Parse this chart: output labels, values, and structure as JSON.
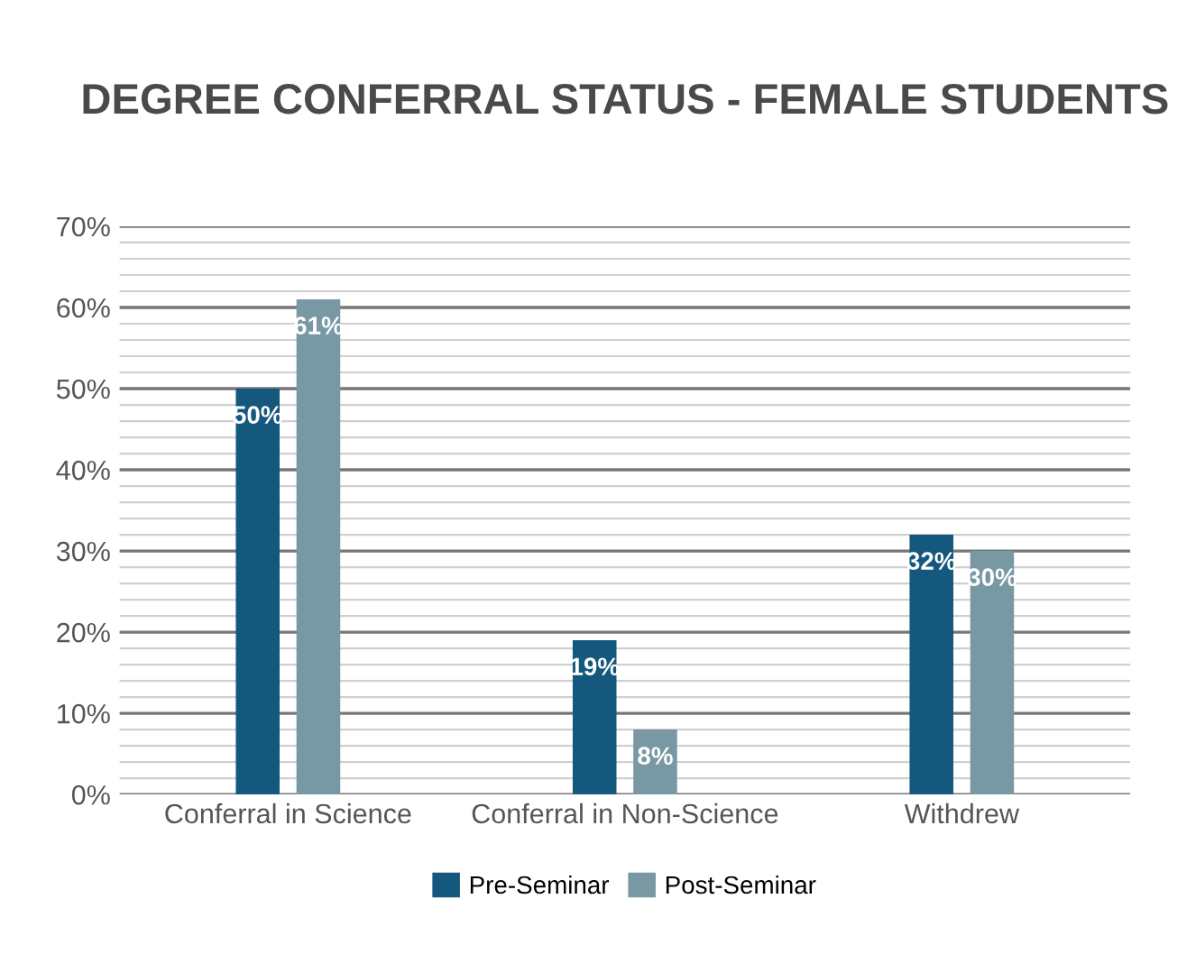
{
  "chart_data": {
    "type": "bar",
    "title": "DEGREE CONFERRAL STATUS - FEMALE STUDENTS",
    "categories": [
      "Conferral in Science",
      "Conferral in Non-Science",
      "Withdrew"
    ],
    "series": [
      {
        "name": "Pre-Seminar",
        "color": "#15587d",
        "values": [
          50,
          19,
          32
        ],
        "value_labels": [
          "50%",
          "19%",
          "32%"
        ]
      },
      {
        "name": "Post-Seminar",
        "color": "#7898a4",
        "values": [
          61,
          8,
          30
        ],
        "value_labels": [
          "61%",
          "8%",
          "30%"
        ]
      }
    ],
    "ylim": [
      0,
      70
    ],
    "yticks": [
      {
        "value": 0,
        "label": "0%"
      },
      {
        "value": 2,
        "label": null
      },
      {
        "value": 4,
        "label": null
      },
      {
        "value": 6,
        "label": null
      },
      {
        "value": 8,
        "label": null
      },
      {
        "value": 10,
        "label": "10%"
      },
      {
        "value": 12,
        "label": null
      },
      {
        "value": 14,
        "label": null
      },
      {
        "value": 16,
        "label": null
      },
      {
        "value": 18,
        "label": null
      },
      {
        "value": 20,
        "label": "20%"
      },
      {
        "value": 22,
        "label": null
      },
      {
        "value": 24,
        "label": null
      },
      {
        "value": 26,
        "label": null
      },
      {
        "value": 28,
        "label": null
      },
      {
        "value": 30,
        "label": "30%"
      },
      {
        "value": 32,
        "label": null
      },
      {
        "value": 34,
        "label": null
      },
      {
        "value": 36,
        "label": null
      },
      {
        "value": 38,
        "label": null
      },
      {
        "value": 40,
        "label": "40%"
      },
      {
        "value": 42,
        "label": null
      },
      {
        "value": 44,
        "label": null
      },
      {
        "value": 46,
        "label": null
      },
      {
        "value": 48,
        "label": null
      },
      {
        "value": 50,
        "label": "50%"
      },
      {
        "value": 52,
        "label": null
      },
      {
        "value": 54,
        "label": null
      },
      {
        "value": 56,
        "label": null
      },
      {
        "value": 58,
        "label": null
      },
      {
        "value": 60,
        "label": "60%"
      },
      {
        "value": 62,
        "label": null
      },
      {
        "value": 64,
        "label": null
      },
      {
        "value": 66,
        "label": null
      },
      {
        "value": 68,
        "label": null
      },
      {
        "value": 70,
        "label": "70%"
      }
    ],
    "grid": "y",
    "legend": "bottom"
  }
}
